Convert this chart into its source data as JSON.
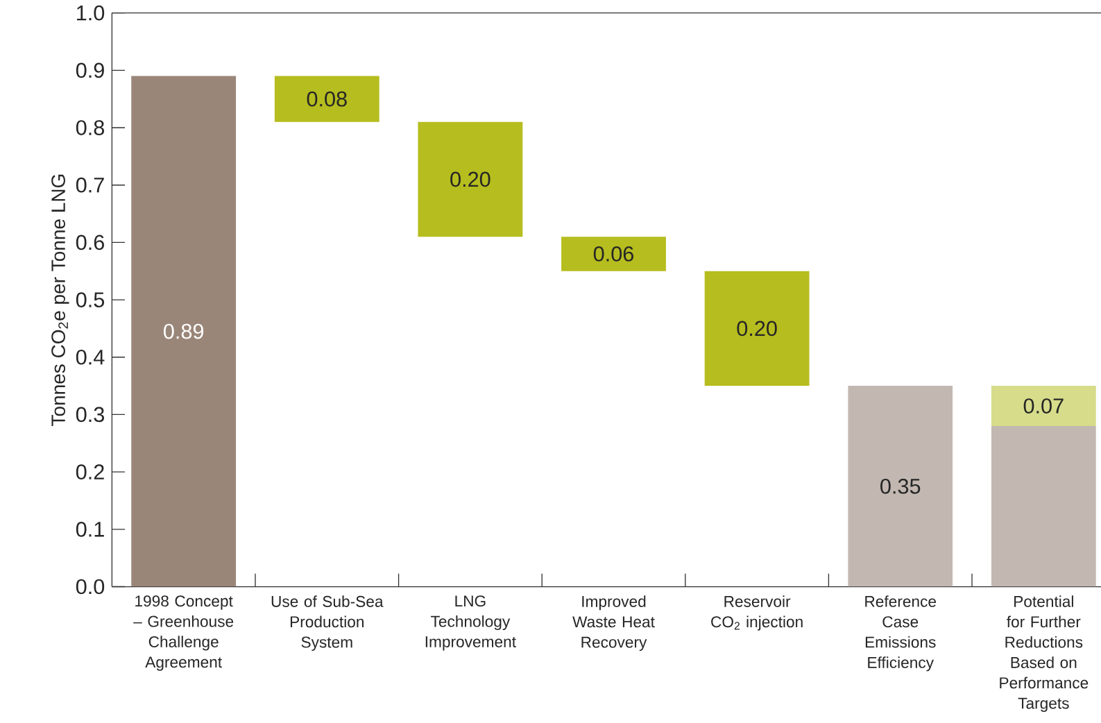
{
  "chart_data": {
    "type": "bar",
    "ylabel": "Tonnes CO$_{2}$e per Tonne LNG",
    "categories": [
      "1998 Concept – Greenhouse Challenge Agreement",
      "Use of Sub-Sea Production System",
      "LNG Technology Improvement",
      "Improved Waste Heat Recovery",
      "Reservoir CO$_{2}$ injection",
      "Reference Case Emissions Efficiency",
      "Potential for Further Reductions Based on Performance Targets"
    ],
    "series": [
      {
        "values": [
          0.89,
          0.08,
          0.2,
          0.06,
          0.2,
          0.35,
          0.28
        ],
        "base": [
          0,
          0.81,
          0.61,
          0.55,
          0.35,
          0,
          0
        ],
        "colors": [
          "#9a8679",
          "#b6bd1e",
          "#b6bd1e",
          "#b6bd1e",
          "#b6bd1e",
          "#c2b8b1",
          "#c2b8b1"
        ],
        "value_labels": [
          "0.89",
          "0.08",
          "0.20",
          "0.06",
          "0.20",
          "0.35",
          null
        ]
      },
      {
        "values": [
          null,
          null,
          null,
          null,
          null,
          null,
          0.07
        ],
        "base": [
          null,
          null,
          null,
          null,
          null,
          null,
          0.28
        ],
        "color": "#d6dc8a",
        "value_labels": [
          null,
          null,
          null,
          null,
          null,
          null,
          "0.07"
        ]
      }
    ],
    "ylim": [
      0,
      1
    ],
    "yticks": [
      {
        "value": 0,
        "label": "0.0"
      },
      0.1,
      0.2,
      0.3,
      0.4,
      0.5,
      0.6,
      0.7,
      0.8,
      0.9,
      {
        "value": 1,
        "label": "1.0"
      }
    ]
  }
}
